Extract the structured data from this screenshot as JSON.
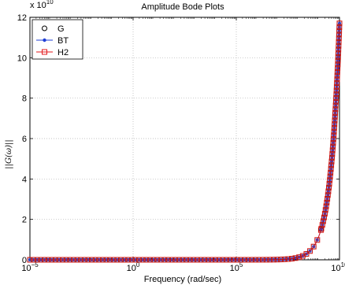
{
  "chart_data": {
    "type": "line",
    "title": "Amplitude Bode Plots",
    "xlabel": "Frequency (rad/sec)",
    "ylabel": "||G(ω)||",
    "x_scale": "log",
    "x_ticks": [
      1e-05,
      1,
      100000.0,
      10000000000.0
    ],
    "x_tick_labels": [
      {
        "base": "10",
        "exp": "−5"
      },
      {
        "base": "10",
        "exp": "0"
      },
      {
        "base": "10",
        "exp": "5"
      },
      {
        "base": "10",
        "exp": "10"
      }
    ],
    "xlim": [
      1e-05,
      10000000000.0
    ],
    "y_multiplier": {
      "base": "x 10",
      "exp": "10"
    },
    "y_ticks": [
      0,
      2,
      4,
      6,
      8,
      10,
      12
    ],
    "y_tick_labels": [
      "0",
      "2",
      "4",
      "6",
      "8",
      "10",
      "12"
    ],
    "ylim": [
      0,
      12
    ],
    "grid": true,
    "legend_position": "top-left",
    "curve_model": {
      "form": "y = c * x",
      "c": 1.17e-09,
      "units_y": "x 10^10"
    },
    "x_min": 1e-05,
    "x_max": 10000000000.0,
    "series": [
      {
        "name": "G",
        "color": "#000000",
        "marker": "circle-open",
        "line": false
      },
      {
        "name": "BT",
        "color": "#1f3fd6",
        "marker": "dot",
        "line": true
      },
      {
        "name": "H2",
        "color": "#e31a1c",
        "marker": "square-open",
        "line": true
      }
    ]
  }
}
